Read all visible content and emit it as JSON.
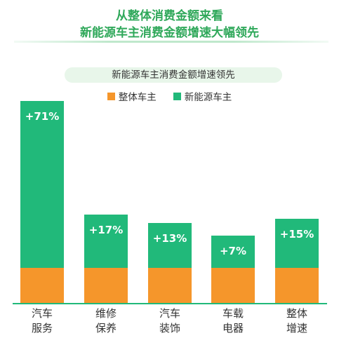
{
  "header": {
    "title_line1": "从整体消费金额来看",
    "title_line2": "新能源车主消费金额增速大幅领先"
  },
  "chart_data": {
    "type": "bar",
    "subtitle": "新能源车主消费金额增速领先",
    "categories": [
      [
        "汽车",
        "服务"
      ],
      [
        "维修",
        "保养"
      ],
      [
        "汽车",
        "装饰"
      ],
      [
        "车载",
        "电器"
      ],
      [
        "整体",
        "增速"
      ]
    ],
    "series": [
      {
        "name": "整体车主",
        "color": "#f5962b"
      },
      {
        "name": "新能源车主",
        "color": "#21b97a",
        "values": [
          71,
          17,
          13,
          7,
          15
        ],
        "labels": [
          "+71%",
          "+17%",
          "+13%",
          "+7%",
          "+15%"
        ]
      }
    ],
    "ylabel": "",
    "grid": false,
    "legend": "top-center",
    "colors": {
      "title": "#2fa85a",
      "axis": "#21b97a",
      "pill": "#e8f6ea"
    }
  }
}
